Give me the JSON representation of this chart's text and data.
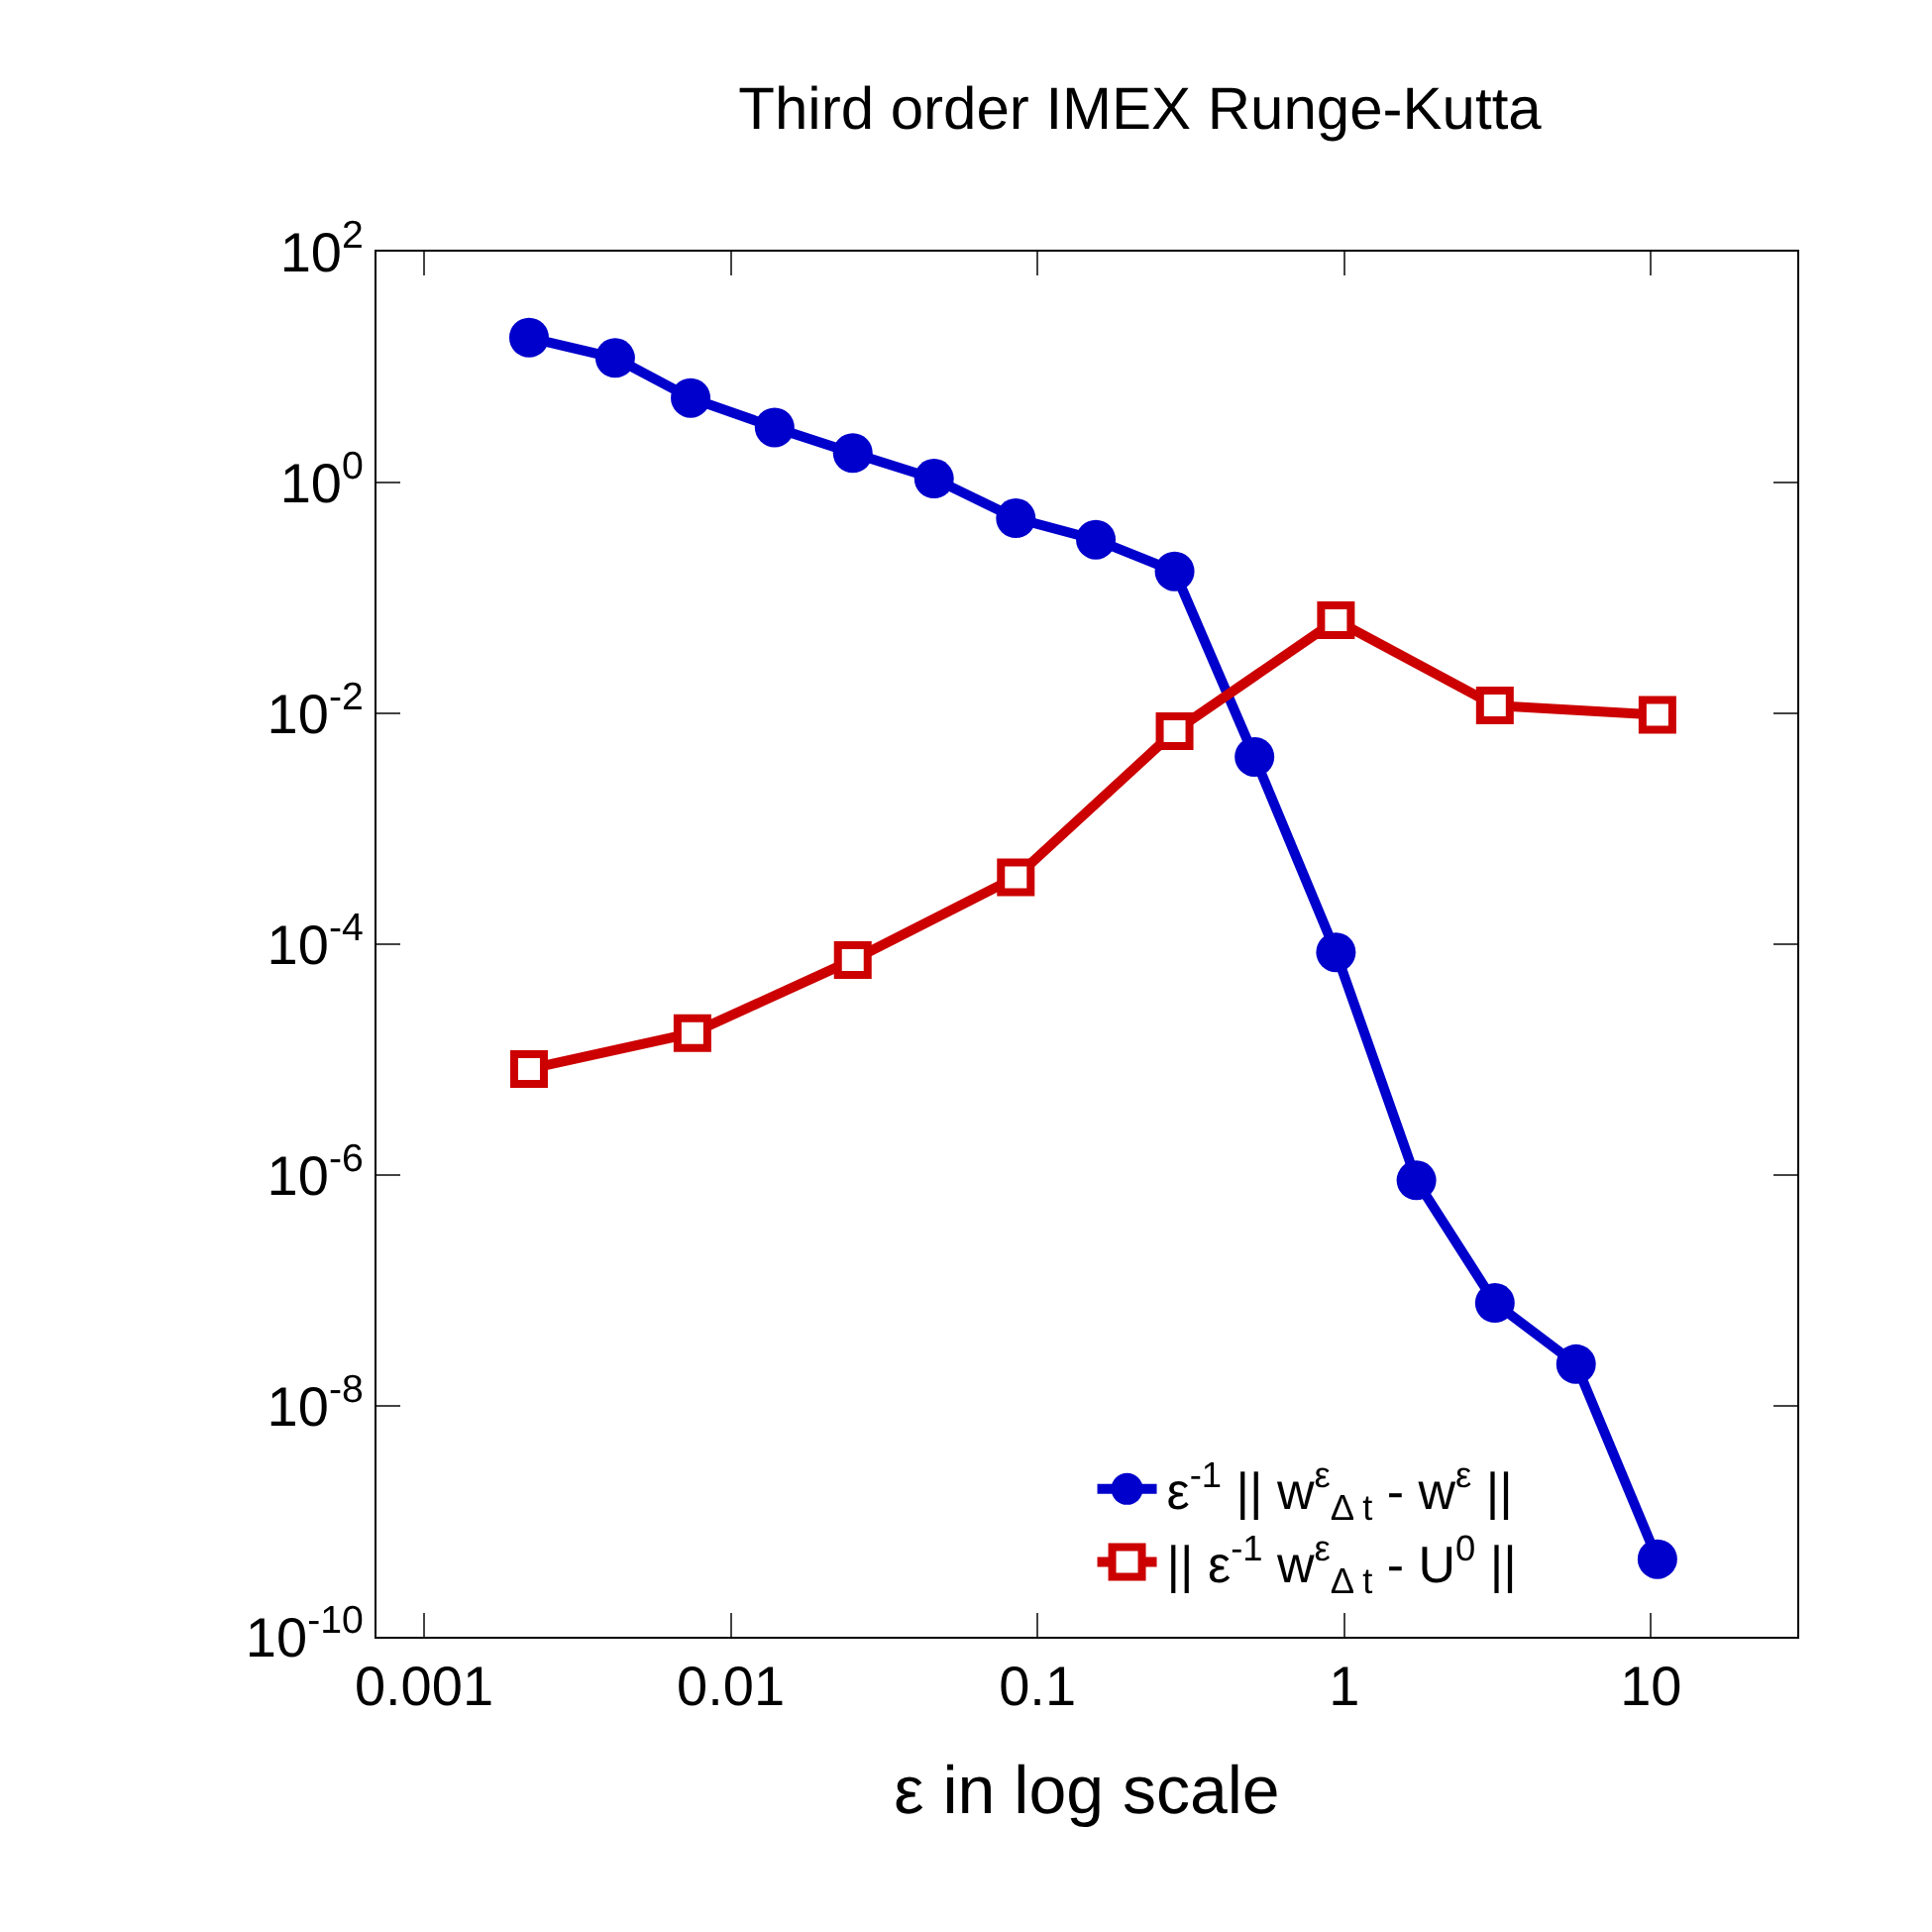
{
  "chart_data": {
    "type": "line",
    "title": "Third order IMEX Runge-Kutta",
    "xlabel": "ε in log scale",
    "log": "xy",
    "grid": false,
    "legend": "bottom right",
    "line_style": "solid",
    "xlim": [
      0.0007,
      30
    ],
    "xticks": [
      0.001,
      0.01,
      0.1,
      1,
      10
    ],
    "ylim": [
      1e-10,
      100
    ],
    "yticks": [
      {
        "value": 1e-10,
        "label": "10$^{-10}$"
      },
      {
        "value": 1e-08,
        "label": "10$^{-8}$"
      },
      {
        "value": 1e-06,
        "label": "10$^{-6}$"
      },
      {
        "value": 0.0001,
        "label": "10$^{-4}$"
      },
      {
        "value": 0.01,
        "label": "10$^{-2}$"
      },
      {
        "value": 1,
        "label": "10$^{0}$"
      },
      {
        "value": 100,
        "label": "10$^{2}$"
      }
    ],
    "series": [
      {
        "name": "ε$^{-1}$ || w$^{ε}$$_{Δ t}$ - w$^{ε}$ ||",
        "color": "#0000cc",
        "marker": "circle",
        "x": [
          0.0022,
          0.0042,
          0.0074,
          0.0139,
          0.025,
          0.046,
          0.085,
          0.155,
          0.28,
          0.51,
          0.94,
          1.72,
          3.1,
          5.7,
          10.5
        ],
        "values": [
          18,
          12,
          5.4,
          3.0,
          1.8,
          1.08,
          0.49,
          0.32,
          0.17,
          0.0042,
          8.5e-05,
          9e-07,
          7.8e-08,
          2.3e-08,
          4.7e-10
        ]
      },
      {
        "name": "|| ε$^{-1}$ w$^{ε}$$_{Δ t}$ - U$^{0}$ ||",
        "color": "#cc0000",
        "marker": "square",
        "x": [
          0.0022,
          0.0075,
          0.025,
          0.085,
          0.28,
          0.94,
          3.1,
          10.5
        ],
        "values": [
          8.3e-06,
          1.7e-05,
          7.3e-05,
          0.00038,
          0.007,
          0.064,
          0.0117,
          0.0097
        ]
      }
    ]
  }
}
